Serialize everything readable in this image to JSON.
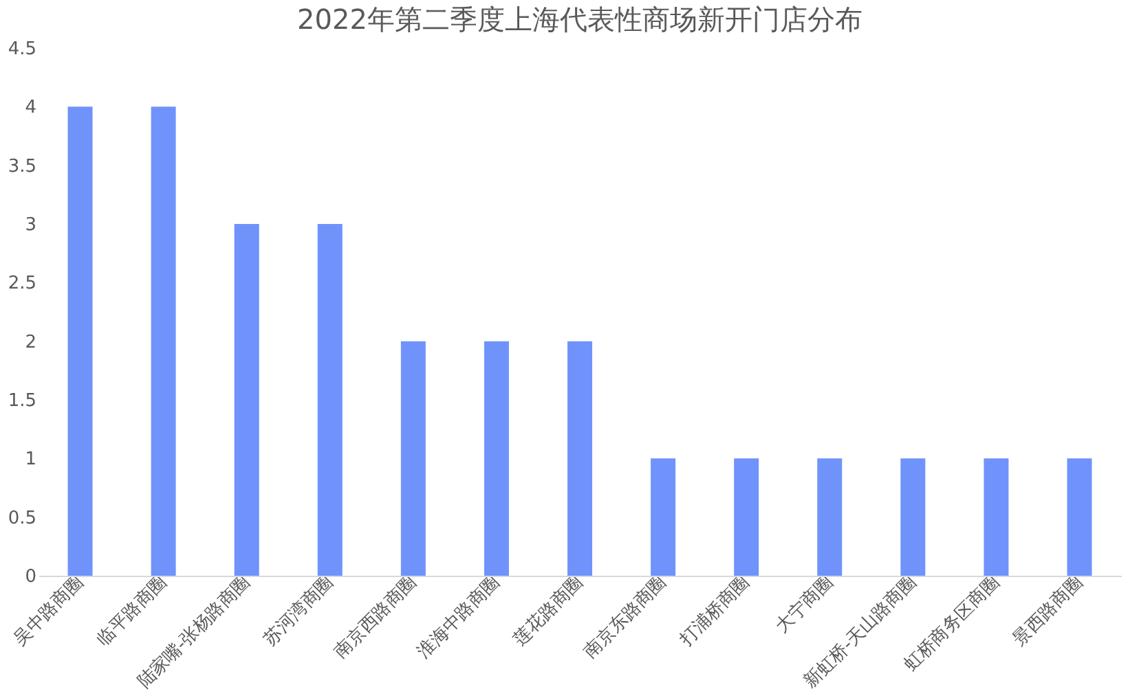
{
  "chart_data": {
    "type": "bar",
    "title": "2022年第二季度上海代表性商场新开门店分布",
    "categories": [
      "吴中路商圈",
      "临平路商圈",
      "陆家嘴-张杨路商圈",
      "苏河湾商圈",
      "南京西路商圈",
      "淮海中路商圈",
      "莲花路商圈",
      "南京东路商圈",
      "打浦桥商圈",
      "大宁商圈",
      "新虹桥-天山路商圈",
      "虹桥商务区商圈",
      "景西路商圈"
    ],
    "values": [
      4,
      4,
      3,
      3,
      2,
      2,
      2,
      1,
      1,
      1,
      1,
      1,
      1
    ],
    "color": "#6f93fa",
    "ylim": [
      0,
      4.5
    ],
    "yticks": [
      0,
      0.5,
      1,
      1.5,
      2,
      2.5,
      3,
      3.5,
      4,
      4.5
    ],
    "grid": false
  }
}
